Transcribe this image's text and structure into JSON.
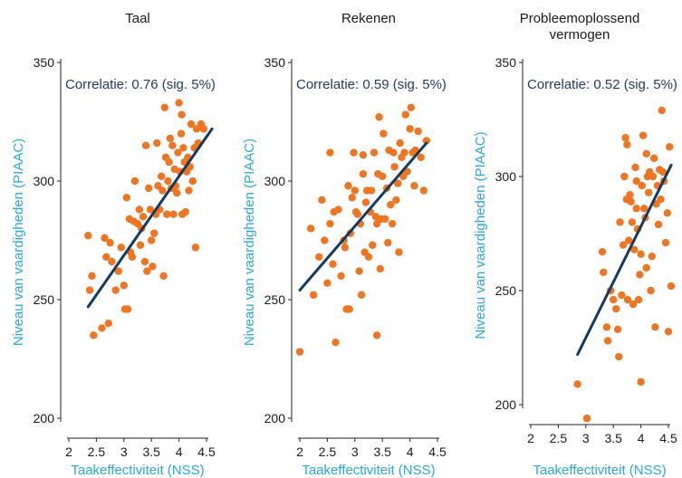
{
  "colors": {
    "point": "#ee7623",
    "trend": "#143a63",
    "axis_label": "#29a9e0",
    "text": "#1a1a1a"
  },
  "chart_data": [
    {
      "type": "scatter",
      "title_lines": [
        "Taal"
      ],
      "annotation": "Correlatie: 0.76 (sig. 5%)",
      "xlabel": "Taakeffectiviteit (NSS)",
      "ylabel": "Niveau van vaardigheden (PIAAC)",
      "xlim": [
        2,
        4.5
      ],
      "ylim": [
        200,
        350
      ],
      "xticks": [
        "2",
        "2.5",
        "3",
        "3.5",
        "4",
        "4.5"
      ],
      "yticks": [
        "200",
        "250",
        "300",
        "350"
      ],
      "trend": {
        "x": [
          2.35,
          4.6
        ],
        "y": [
          247,
          322
        ]
      },
      "points": [
        [
          2.35,
          277
        ],
        [
          2.38,
          254
        ],
        [
          2.42,
          260
        ],
        [
          2.45,
          235
        ],
        [
          2.6,
          238
        ],
        [
          2.65,
          276
        ],
        [
          2.68,
          268
        ],
        [
          2.72,
          240
        ],
        [
          2.75,
          274
        ],
        [
          2.78,
          266
        ],
        [
          2.85,
          254
        ],
        [
          2.9,
          262
        ],
        [
          2.95,
          272
        ],
        [
          3.0,
          256
        ],
        [
          3.02,
          246
        ],
        [
          3.05,
          293
        ],
        [
          3.07,
          246
        ],
        [
          3.1,
          284
        ],
        [
          3.12,
          270
        ],
        [
          3.15,
          268
        ],
        [
          3.18,
          283
        ],
        [
          3.2,
          300
        ],
        [
          3.25,
          282
        ],
        [
          3.28,
          288
        ],
        [
          3.3,
          273
        ],
        [
          3.32,
          280
        ],
        [
          3.35,
          285
        ],
        [
          3.38,
          266
        ],
        [
          3.4,
          315
        ],
        [
          3.42,
          262
        ],
        [
          3.45,
          297
        ],
        [
          3.48,
          288
        ],
        [
          3.5,
          275
        ],
        [
          3.52,
          264
        ],
        [
          3.55,
          278
        ],
        [
          3.58,
          286
        ],
        [
          3.6,
          316
        ],
        [
          3.62,
          298
        ],
        [
          3.65,
          288
        ],
        [
          3.68,
          302
        ],
        [
          3.7,
          296
        ],
        [
          3.72,
          260
        ],
        [
          3.74,
          331
        ],
        [
          3.76,
          310
        ],
        [
          3.78,
          286
        ],
        [
          3.8,
          300
        ],
        [
          3.82,
          308
        ],
        [
          3.84,
          318
        ],
        [
          3.86,
          297
        ],
        [
          3.88,
          315
        ],
        [
          3.9,
          286
        ],
        [
          3.92,
          305
        ],
        [
          3.94,
          298
        ],
        [
          3.96,
          295
        ],
        [
          3.98,
          312
        ],
        [
          4.0,
          333
        ],
        [
          4.02,
          304
        ],
        [
          4.04,
          320
        ],
        [
          4.06,
          286
        ],
        [
          4.08,
          314
        ],
        [
          4.1,
          308
        ],
        [
          4.12,
          287
        ],
        [
          4.14,
          304
        ],
        [
          4.16,
          310
        ],
        [
          4.18,
          296
        ],
        [
          4.2,
          306
        ],
        [
          4.22,
          324
        ],
        [
          4.25,
          300
        ],
        [
          4.28,
          314
        ],
        [
          4.3,
          272
        ],
        [
          4.32,
          322
        ],
        [
          4.35,
          316
        ],
        [
          4.4,
          324
        ],
        [
          4.45,
          322
        ],
        [
          4.05,
          328
        ]
      ]
    },
    {
      "type": "scatter",
      "title_lines": [
        "Rekenen"
      ],
      "annotation": "Correlatie: 0.59 (sig. 5%)",
      "xlabel": "Taakeffectiviteit (NSS)",
      "ylabel": "Niveau van vaardigheden (PIAAC)",
      "xlim": [
        2,
        4.5
      ],
      "ylim": [
        200,
        350
      ],
      "xticks": [
        "2",
        "2.5",
        "3",
        "3.5",
        "4",
        "4.5"
      ],
      "yticks": [
        "200",
        "250",
        "300",
        "350"
      ],
      "trend": {
        "x": [
          2.0,
          4.3
        ],
        "y": [
          254,
          316
        ]
      },
      "points": [
        [
          2.0,
          228
        ],
        [
          2.2,
          280
        ],
        [
          2.25,
          252
        ],
        [
          2.35,
          268
        ],
        [
          2.4,
          292
        ],
        [
          2.45,
          275
        ],
        [
          2.5,
          257
        ],
        [
          2.55,
          282
        ],
        [
          2.6,
          265
        ],
        [
          2.62,
          287
        ],
        [
          2.65,
          232
        ],
        [
          2.7,
          288
        ],
        [
          2.75,
          260
        ],
        [
          2.8,
          275
        ],
        [
          2.82,
          272
        ],
        [
          2.85,
          246
        ],
        [
          2.88,
          298
        ],
        [
          2.9,
          246
        ],
        [
          2.92,
          278
        ],
        [
          2.95,
          293
        ],
        [
          2.98,
          312
        ],
        [
          3.0,
          296
        ],
        [
          3.02,
          287
        ],
        [
          3.05,
          286
        ],
        [
          3.08,
          262
        ],
        [
          3.1,
          282
        ],
        [
          3.12,
          252
        ],
        [
          3.15,
          303
        ],
        [
          3.18,
          270
        ],
        [
          3.2,
          291
        ],
        [
          3.22,
          296
        ],
        [
          3.25,
          268
        ],
        [
          3.28,
          287
        ],
        [
          3.3,
          296
        ],
        [
          3.32,
          273
        ],
        [
          3.35,
          312
        ],
        [
          3.38,
          285
        ],
        [
          3.4,
          235
        ],
        [
          3.42,
          303
        ],
        [
          3.44,
          327
        ],
        [
          3.46,
          263
        ],
        [
          3.48,
          284
        ],
        [
          3.5,
          302
        ],
        [
          3.52,
          320
        ],
        [
          3.55,
          284
        ],
        [
          3.58,
          297
        ],
        [
          3.6,
          274
        ],
        [
          3.62,
          313
        ],
        [
          3.65,
          290
        ],
        [
          3.68,
          282
        ],
        [
          3.7,
          312
        ],
        [
          3.72,
          306
        ],
        [
          3.75,
          292
        ],
        [
          3.78,
          299
        ],
        [
          3.8,
          270
        ],
        [
          3.82,
          316
        ],
        [
          3.85,
          310
        ],
        [
          3.88,
          302
        ],
        [
          3.9,
          312
        ],
        [
          3.92,
          328
        ],
        [
          3.95,
          304
        ],
        [
          4.0,
          322
        ],
        [
          4.02,
          331
        ],
        [
          4.05,
          312
        ],
        [
          4.08,
          298
        ],
        [
          4.1,
          313
        ],
        [
          4.15,
          321
        ],
        [
          4.2,
          310
        ],
        [
          4.25,
          296
        ],
        [
          4.3,
          317
        ],
        [
          2.55,
          312
        ],
        [
          3.4,
          282
        ],
        [
          3.15,
          311
        ]
      ]
    },
    {
      "type": "scatter",
      "title_lines": [
        "Probleemoplossend",
        "vermogen"
      ],
      "annotation": "Correlatie: 0.52 (sig. 5%)",
      "xlabel": "Taakeffectiviteit (NSS)",
      "ylabel": "Niveau van vaardigheden (PIAAC)",
      "xlim": [
        2,
        4.5
      ],
      "ylim": [
        200,
        350
      ],
      "xticks": [
        "2",
        "2.5",
        "3",
        "3.5",
        "4",
        "4.5"
      ],
      "yticks": [
        "200",
        "250",
        "300",
        "350"
      ],
      "trend": {
        "x": [
          2.85,
          4.55
        ],
        "y": [
          222,
          305
        ]
      },
      "points": [
        [
          2.85,
          209
        ],
        [
          3.02,
          194
        ],
        [
          3.3,
          267
        ],
        [
          3.32,
          258
        ],
        [
          3.38,
          234
        ],
        [
          3.4,
          228
        ],
        [
          3.45,
          250
        ],
        [
          3.5,
          246
        ],
        [
          3.55,
          242
        ],
        [
          3.58,
          233
        ],
        [
          3.6,
          221
        ],
        [
          3.62,
          280
        ],
        [
          3.65,
          248
        ],
        [
          3.68,
          270
        ],
        [
          3.7,
          300
        ],
        [
          3.72,
          317
        ],
        [
          3.74,
          290
        ],
        [
          3.75,
          314
        ],
        [
          3.76,
          246
        ],
        [
          3.78,
          272
        ],
        [
          3.8,
          292
        ],
        [
          3.82,
          289
        ],
        [
          3.84,
          280
        ],
        [
          3.86,
          244
        ],
        [
          3.88,
          268
        ],
        [
          3.9,
          304
        ],
        [
          3.92,
          286
        ],
        [
          3.94,
          277
        ],
        [
          3.96,
          246
        ],
        [
          3.98,
          257
        ],
        [
          4.0,
          266
        ],
        [
          4.0,
          210
        ],
        [
          4.02,
          296
        ],
        [
          4.04,
          318
        ],
        [
          4.06,
          286
        ],
        [
          4.08,
          282
        ],
        [
          4.1,
          310
        ],
        [
          4.12,
          300
        ],
        [
          4.14,
          293
        ],
        [
          4.16,
          302
        ],
        [
          4.18,
          250
        ],
        [
          4.2,
          265
        ],
        [
          4.22,
          300
        ],
        [
          4.24,
          308
        ],
        [
          4.26,
          234
        ],
        [
          4.28,
          288
        ],
        [
          4.3,
          296
        ],
        [
          4.32,
          279
        ],
        [
          4.34,
          303
        ],
        [
          4.36,
          290
        ],
        [
          4.38,
          329
        ],
        [
          4.4,
          302
        ],
        [
          4.42,
          298
        ],
        [
          4.45,
          271
        ],
        [
          4.48,
          284
        ],
        [
          4.5,
          232
        ],
        [
          4.52,
          313
        ],
        [
          4.55,
          252
        ],
        [
          3.92,
          298
        ],
        [
          4.1,
          260
        ]
      ]
    }
  ]
}
